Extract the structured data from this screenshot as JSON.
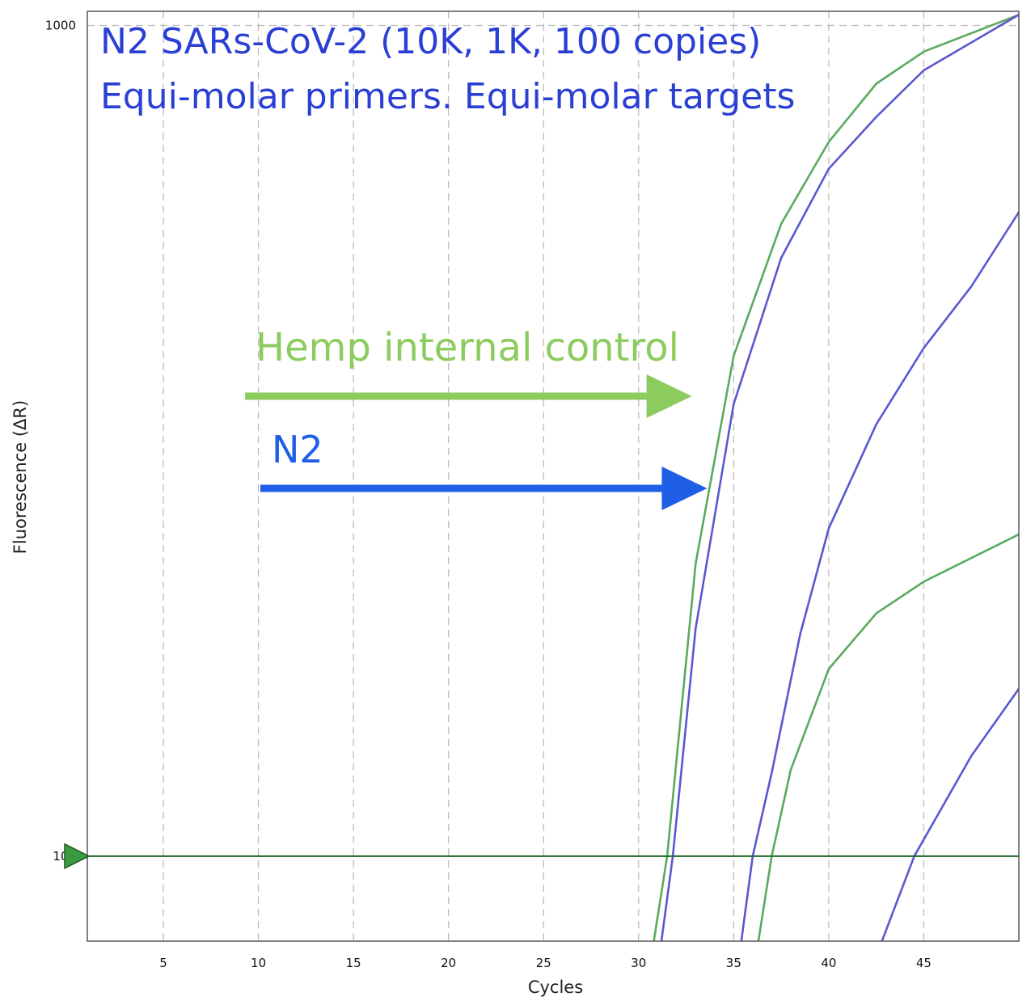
{
  "chart_data": {
    "type": "line",
    "title": "N2 SARs-CoV-2 (10K, 1K, 100 copies)",
    "subtitle": "Equi-molar primers. Equi-molar targets",
    "xlabel": "Cycles",
    "ylabel": "Fluorescence (ΔR)",
    "x_scale": "linear",
    "y_scale": "log",
    "xlim": [
      1,
      50
    ],
    "ylim": [
      79,
      1040
    ],
    "grid": true,
    "x_ticks": [
      5,
      10,
      15,
      20,
      25,
      30,
      35,
      40,
      45
    ],
    "x_tick_labels": [
      "5",
      "10",
      "15",
      "20",
      "25",
      "30",
      "35",
      "40",
      "45"
    ],
    "y_ticks": [
      100,
      1000
    ],
    "y_tick_labels": [
      "100",
      "1000"
    ],
    "threshold": 100,
    "colors": {
      "green": "#5aaa5e",
      "blue": "#5a58d0",
      "threshold": "#1f6a2a"
    },
    "series": [
      {
        "color": "green",
        "x": [
          30.8,
          31.5,
          33,
          35,
          37.5,
          40,
          42.5,
          45,
          50
        ],
        "y": [
          79,
          100,
          225,
          400,
          577,
          724,
          851,
          930,
          1030
        ]
      },
      {
        "color": "blue",
        "x": [
          31.2,
          31.8,
          33,
          35,
          37.5,
          40,
          42.5,
          45,
          50
        ],
        "y": [
          79,
          100,
          188,
          350,
          525,
          672,
          776,
          883,
          1030
        ]
      },
      {
        "color": "blue",
        "x": [
          35.4,
          36,
          37,
          38.5,
          40,
          42.5,
          45,
          47.5,
          50
        ],
        "y": [
          79,
          100,
          126,
          185,
          248,
          331,
          409,
          485,
          596
        ]
      },
      {
        "color": "green",
        "x": [
          36.3,
          37,
          38,
          40,
          42.5,
          45,
          50
        ],
        "y": [
          79,
          100,
          127,
          168,
          196,
          214,
          244
        ]
      },
      {
        "color": "blue",
        "x": [
          42.8,
          44.5,
          47.5,
          50
        ],
        "y": [
          79,
          100,
          132,
          159
        ]
      }
    ],
    "annotations": [
      {
        "text": "Hemp internal control",
        "color": "#8ccc5e",
        "arrow_from_x": 9.3,
        "arrow_to_x": 32.8
      },
      {
        "text": "N2",
        "color": "#1e5fe6",
        "arrow_from_x": 10.1,
        "arrow_to_x": 33.6
      }
    ]
  }
}
